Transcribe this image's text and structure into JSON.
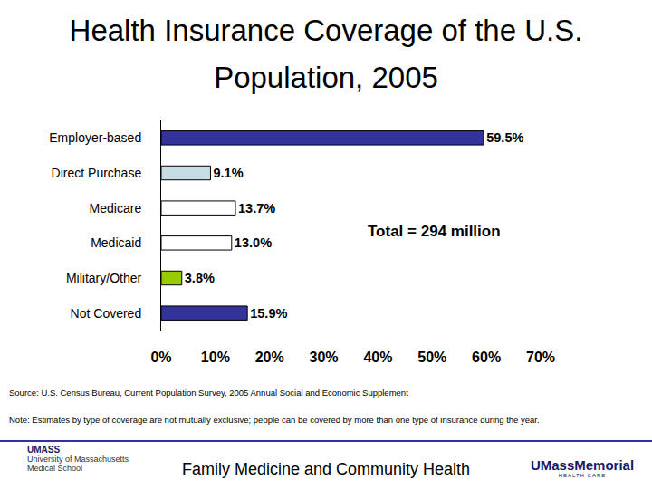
{
  "chart_data": {
    "type": "bar",
    "orientation": "horizontal",
    "title": "Health Insurance Coverage of the U.S. Population, 2005",
    "categories": [
      "Employer-based",
      "Direct Purchase",
      "Medicare",
      "Medicaid",
      "Military/Other",
      "Not Covered"
    ],
    "values": [
      59.5,
      9.1,
      13.7,
      13.0,
      3.8,
      15.9
    ],
    "value_labels": [
      "59.5%",
      "9.1%",
      "13.7%",
      "13.0%",
      "3.8%",
      "15.9%"
    ],
    "colors": [
      "#333399",
      "#c6dde6",
      "#ffffff",
      "#ffffff",
      "#99cc00",
      "#333399"
    ],
    "data_labels": true,
    "grid": false,
    "xlim": [
      0,
      70
    ],
    "xticks": [
      {
        "value": 0,
        "label": "0%"
      },
      {
        "value": 10,
        "label": "10%"
      },
      {
        "value": 20,
        "label": "20%"
      },
      {
        "value": 30,
        "label": "30%"
      },
      {
        "value": 40,
        "label": "40%"
      },
      {
        "value": 50,
        "label": "50%"
      },
      {
        "value": 60,
        "label": "60%"
      },
      {
        "value": 70,
        "label": "70%"
      }
    ],
    "annotations": [
      "Total = 294 million"
    ]
  },
  "page": {
    "source": "Source: U.S. Census Bureau, Current Population Survey, 2005 Annual Social and Economic Supplement",
    "note": "Note: Estimates by type of coverage are not mutually exclusive; people can be covered by more than one type of insurance during the year.",
    "footer": "Family Medicine and Community Health",
    "logo_left": [
      "University of Massachusetts Medical School",
      "UMASS"
    ],
    "logo_right": [
      "UMassMemorial",
      "HEALTH CARE"
    ]
  }
}
